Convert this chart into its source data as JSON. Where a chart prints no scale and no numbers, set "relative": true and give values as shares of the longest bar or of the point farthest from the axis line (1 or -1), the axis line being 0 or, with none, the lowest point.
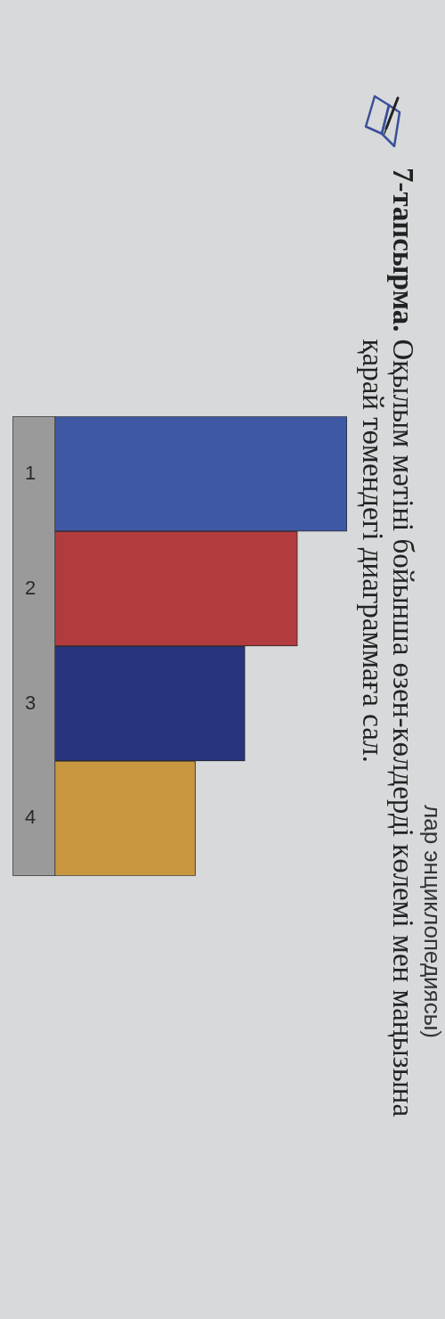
{
  "chart_data": {
    "type": "bar",
    "orientation": "horizontal",
    "relative": true,
    "title": "7-тапсырма.",
    "subtitle": "Оқылым мәтіні бойынша өзен-көлдерді көлемі мен маңызына қарай төмендегі диаграммаға сал.",
    "annotations": [
      "лар энциклопедиясы)"
    ],
    "categories": [
      "1",
      "2",
      "3",
      "4"
    ],
    "values": [
      1,
      0.83,
      0.65,
      0.48
    ],
    "colors": [
      "#3f58a3",
      "#b23b3d",
      "#28347c",
      "#c99740"
    ]
  }
}
